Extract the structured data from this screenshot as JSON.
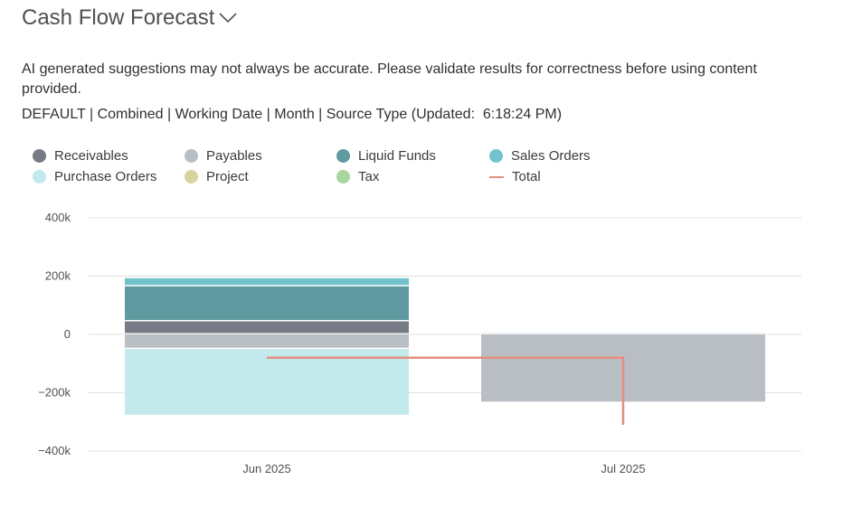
{
  "header": {
    "title": "Cash Flow Forecast",
    "notice": "AI generated suggestions may not always be accurate. Please validate results for correctness before using content provided.",
    "subinfo": "DEFAULT | Combined | Working Date | Month | Source Type (Updated:  6:18:24 PM)"
  },
  "chart_data": {
    "type": "bar",
    "stacked": true,
    "categories": [
      "Jun 2025",
      "Jul 2025"
    ],
    "ylim": [
      -400000,
      400000
    ],
    "yticks": [
      {
        "value": 400000,
        "label": "400k"
      },
      {
        "value": 200000,
        "label": "200k"
      },
      {
        "value": 0,
        "label": "0"
      },
      {
        "value": -200000,
        "label": "−200k"
      },
      {
        "value": -400000,
        "label": "−400k"
      }
    ],
    "grid": true,
    "legend_position": "top",
    "series": [
      {
        "name": "Receivables",
        "color": "#767b86",
        "values": [
          45000,
          0
        ]
      },
      {
        "name": "Payables",
        "color": "#b9bdc4",
        "values": [
          -50000,
          -235000
        ]
      },
      {
        "name": "Liquid Funds",
        "color": "#5f9aa0",
        "values": [
          120000,
          5000
        ]
      },
      {
        "name": "Sales Orders",
        "color": "#74c3cc",
        "values": [
          28000,
          0
        ]
      },
      {
        "name": "Purchase Orders",
        "color": "#c2e9ec",
        "values": [
          -230000,
          0
        ]
      },
      {
        "name": "Project",
        "color": "#d8d3a0",
        "values": [
          0,
          0
        ]
      },
      {
        "name": "Tax",
        "color": "#a9d59f",
        "values": [
          0,
          0
        ]
      },
      {
        "name": "Total",
        "color": "#e58e7e",
        "type": "line",
        "values": [
          -80000,
          -310000
        ]
      }
    ]
  }
}
